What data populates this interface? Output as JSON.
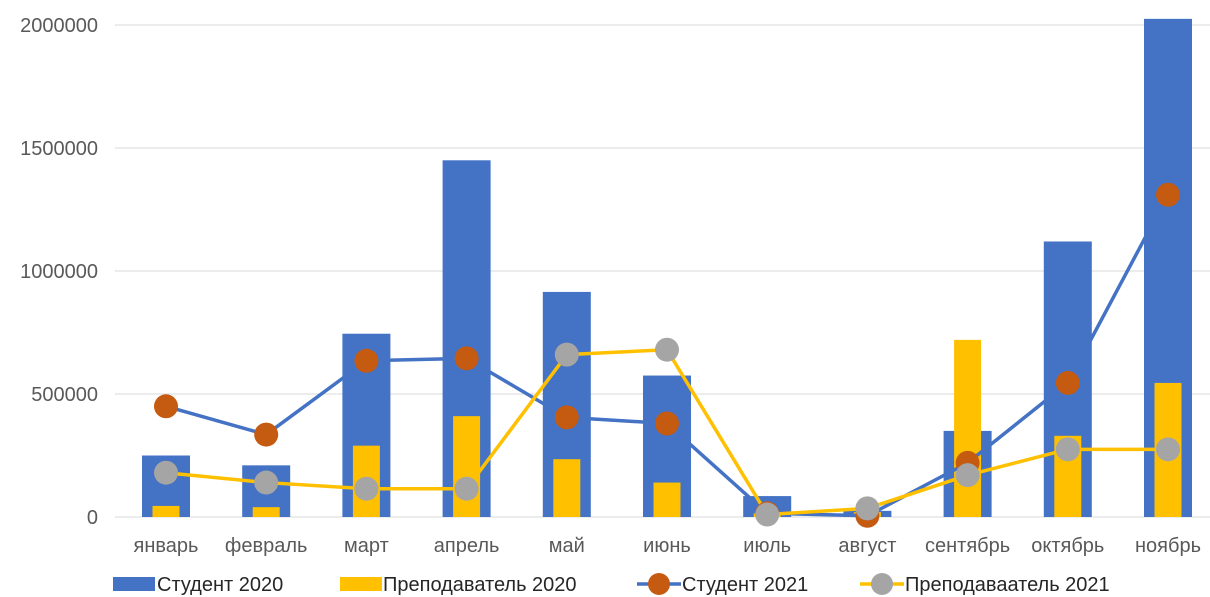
{
  "chart_data": {
    "type": "bar",
    "title": "",
    "xlabel": "",
    "ylabel": "",
    "categories": [
      "январь",
      "февраль",
      "март",
      "апрель",
      "май",
      "июнь",
      "июль",
      "август",
      "сентябрь",
      "октябрь",
      "ноябрь"
    ],
    "ylim": [
      0,
      2000000
    ],
    "yticks": [
      "0",
      "500000",
      "1000000",
      "1500000",
      "2000000"
    ],
    "grid": true,
    "legend_position": "bottom",
    "series": [
      {
        "name": "Студент 2020",
        "kind": "bar",
        "color": "#4472C4",
        "values": [
          250000,
          210000,
          745000,
          1450000,
          915000,
          575000,
          85000,
          25000,
          350000,
          1120000,
          2025000
        ]
      },
      {
        "name": "Преподаватель 2020",
        "kind": "bar",
        "color": "#FFC000",
        "values": [
          45000,
          40000,
          290000,
          410000,
          235000,
          140000,
          15000,
          20000,
          720000,
          330000,
          545000
        ]
      },
      {
        "name": "Студент 2021",
        "kind": "line",
        "color": "#4472C4",
        "marker_color": "#C55A11",
        "values": [
          450000,
          335000,
          635000,
          645000,
          405000,
          380000,
          15000,
          5000,
          220000,
          545000,
          1310000
        ]
      },
      {
        "name": "Преподаваатель 2021",
        "kind": "line",
        "color": "#FFC000",
        "marker_color": "#A5A5A5",
        "values": [
          180000,
          140000,
          115000,
          115000,
          660000,
          680000,
          10000,
          35000,
          170000,
          275000,
          275000
        ]
      }
    ]
  }
}
